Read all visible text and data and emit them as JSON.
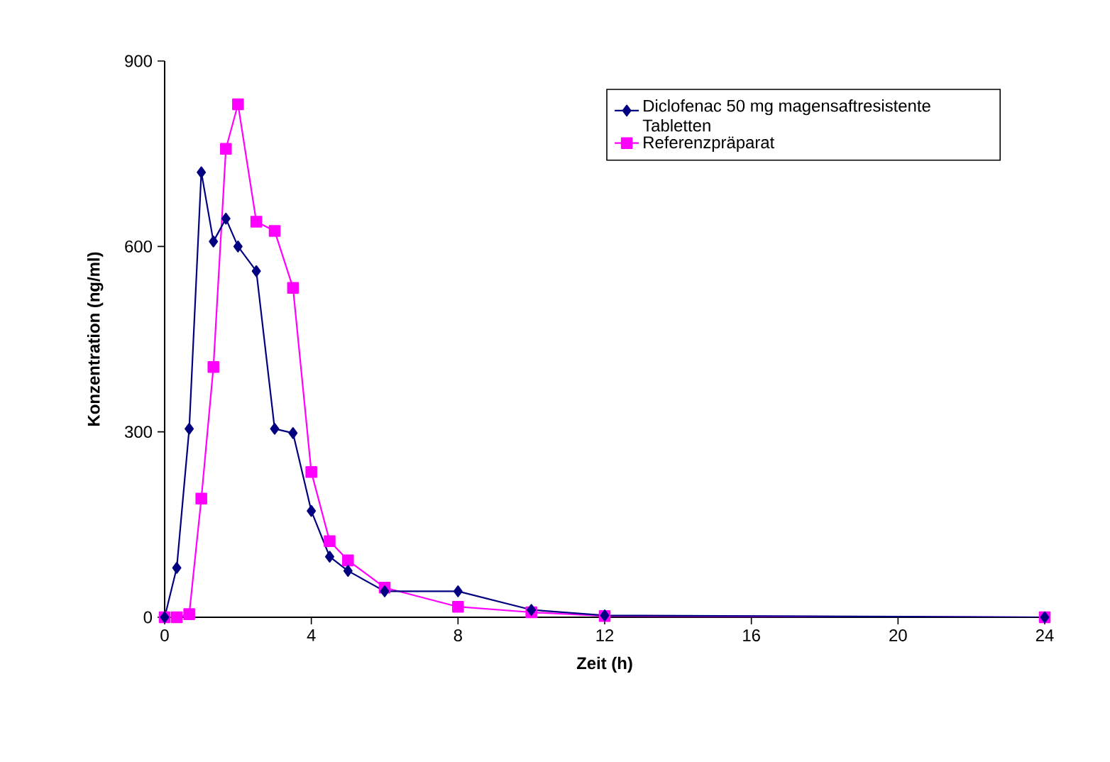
{
  "chart_data": {
    "type": "line",
    "xlabel": "Zeit (h)",
    "ylabel": "Konzentration (ng/ml)",
    "xlim": [
      0,
      24
    ],
    "xticks": [
      0,
      4,
      8,
      12,
      16,
      20,
      24
    ],
    "ylim": [
      0,
      900
    ],
    "yticks": [
      0,
      300,
      600,
      900
    ],
    "legend": "top right",
    "grid": false,
    "series": [
      {
        "name": "Diclofenac 50 mg magensaftresistente Tabletten",
        "color": "#000080",
        "marker": "diamond",
        "x": [
          0,
          0.33,
          0.67,
          1,
          1.33,
          1.67,
          2,
          2.5,
          3,
          3.5,
          4,
          4.5,
          5,
          6,
          8,
          10,
          12,
          24
        ],
        "values": [
          0,
          80,
          305,
          720,
          608,
          645,
          600,
          560,
          305,
          298,
          172,
          98,
          75,
          42,
          42,
          12,
          3,
          0
        ]
      },
      {
        "name": "Referenzpräparat",
        "color": "#ff00ff",
        "marker": "square",
        "x": [
          0,
          0.33,
          0.67,
          1,
          1.33,
          1.67,
          2,
          2.5,
          3,
          3.5,
          4,
          4.5,
          5,
          6,
          8,
          10,
          12,
          24
        ],
        "values": [
          0,
          0,
          5,
          192,
          405,
          758,
          830,
          640,
          625,
          533,
          235,
          123,
          92,
          48,
          17,
          8,
          2,
          0
        ]
      }
    ]
  }
}
